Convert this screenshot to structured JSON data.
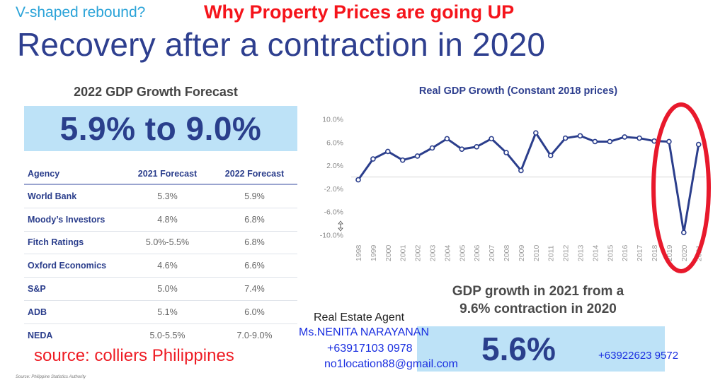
{
  "header": {
    "subtitle": "V-shaped rebound?",
    "headline": "Why Property Prices are going UP",
    "title": "Recovery after a contraction in 2020"
  },
  "forecast": {
    "title": "2022 GDP Growth Forecast",
    "range": "5.9% to 9.0%",
    "table": {
      "columns": [
        "Agency",
        "2021 Forecast",
        "2022 Forecast"
      ],
      "rows": [
        {
          "agency": "World Bank",
          "f2021": "5.3%",
          "f2022": "5.9%"
        },
        {
          "agency": "Moody’s Investors",
          "f2021": "4.8%",
          "f2022": "6.8%"
        },
        {
          "agency": "Fitch Ratings",
          "f2021": "5.0%-5.5%",
          "f2022": "6.8%"
        },
        {
          "agency": "Oxford Economics",
          "f2021": "4.6%",
          "f2022": "6.6%"
        },
        {
          "agency": "S&P",
          "f2021": "5.0%",
          "f2022": "7.4%"
        },
        {
          "agency": "ADB",
          "f2021": "5.1%",
          "f2022": "6.0%"
        },
        {
          "agency": "NEDA",
          "f2021": "5.0-5.5%",
          "f2022": "7.0-9.0%"
        }
      ]
    },
    "source_overlay": "source: colliers Philippines",
    "source_note": "Source: Philippine Statistics Authority"
  },
  "growth": {
    "title_line1": "GDP growth in 2021 from a",
    "title_line2": "9.6% contraction in 2020",
    "value": "5.6%"
  },
  "agent": {
    "label": "Real Estate Agent",
    "name": "Ms.NENITA NARAYANAN",
    "phone1": "+63917103 0978",
    "email": "no1location88@gmail.com",
    "phone2": "+63922623 9572"
  },
  "colors": {
    "line": "#2b3e8c",
    "highlight_ellipse": "#e8192c",
    "box_fill": "#bde2f7",
    "headline_red": "#f5141b"
  },
  "chart_data": {
    "type": "line",
    "title": "Real GDP Growth (Constant 2018 prices)",
    "xlabel": "",
    "ylabel": "",
    "x": [
      "1998",
      "1999",
      "2000",
      "2001",
      "2002",
      "2003",
      "2004",
      "2005",
      "2006",
      "2007",
      "2008",
      "2009",
      "2010",
      "2011",
      "2012",
      "2013",
      "2014",
      "2015",
      "2016",
      "2017",
      "2018",
      "2019",
      "2020",
      "2021"
    ],
    "series": [
      {
        "name": "Real GDP Growth",
        "values": [
          -0.5,
          3.1,
          4.4,
          2.9,
          3.6,
          5.0,
          6.6,
          4.8,
          5.2,
          6.6,
          4.2,
          1.1,
          7.6,
          3.7,
          6.7,
          7.1,
          6.1,
          6.1,
          6.9,
          6.7,
          6.2,
          6.1,
          -9.6,
          5.6
        ]
      }
    ],
    "yticks": [
      "10.0%",
      "6.0%",
      "2.0%",
      "-2.0%",
      "-6.0%",
      "-10.0%"
    ],
    "ylim": [
      -10,
      10
    ],
    "grid": false,
    "zero_line": true,
    "annotation": "red ellipse highlighting 2019-2021 V-shaped drop"
  }
}
